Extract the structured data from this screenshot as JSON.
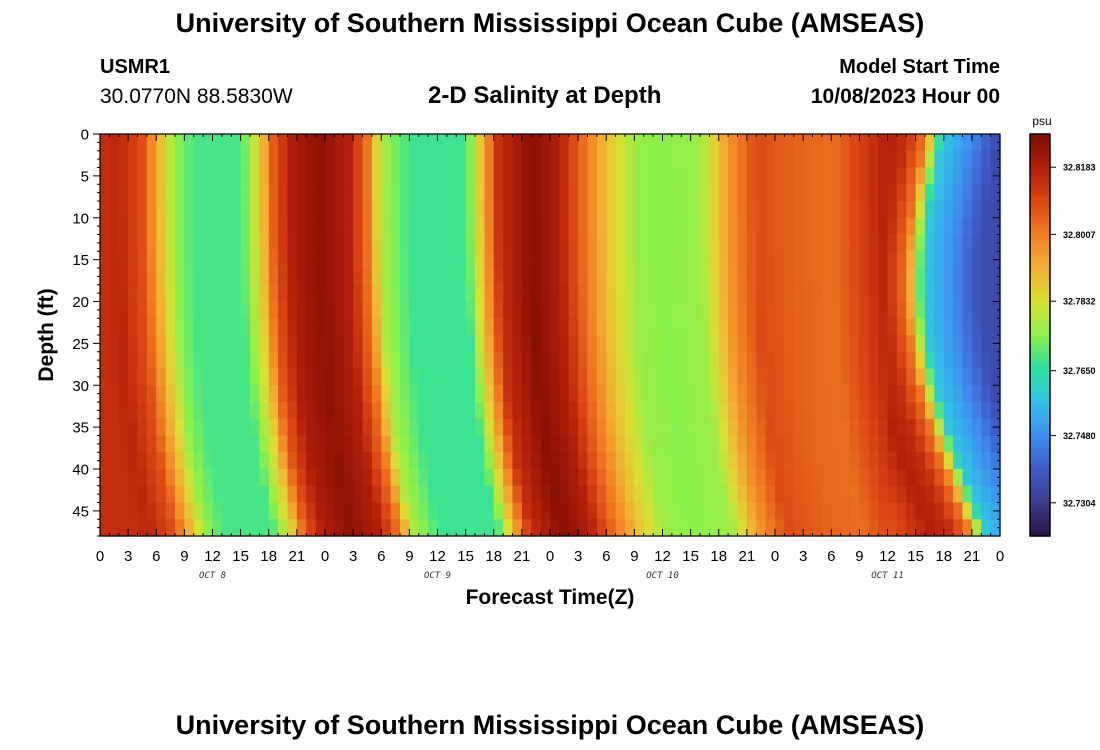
{
  "header": {
    "title": "University of Southern Mississippi Ocean Cube (AMSEAS)",
    "station": "USMR1",
    "coords": "30.0770N  88.5830W",
    "subtitle": "2-D Salinity at Depth",
    "model_start_label": "Model Start Time",
    "model_start_value": "10/08/2023 Hour 00"
  },
  "footer": {
    "title": "University of Southern Mississippi Ocean Cube (AMSEAS)"
  },
  "colors": {
    "background": "#ffffff",
    "axis": "#000000",
    "colormap": [
      "#2b1342",
      "#3b3d8f",
      "#3e5bc8",
      "#3f8cf0",
      "#31c2e6",
      "#2ee0a0",
      "#8cf04a",
      "#d9e032",
      "#f2b033",
      "#f07d22",
      "#db4714",
      "#b21e0a",
      "#7a0d02"
    ]
  },
  "chart_data": {
    "type": "heatmap",
    "title": "2-D Salinity at Depth",
    "xlabel": "Forecast Time(Z)",
    "ylabel": "Depth (ft)",
    "x_tick_labels": [
      "0",
      "3",
      "6",
      "9",
      "12",
      "15",
      "18",
      "21",
      "0",
      "3",
      "6",
      "9",
      "12",
      "15",
      "18",
      "21",
      "0",
      "3",
      "6",
      "9",
      "12",
      "15",
      "18",
      "21",
      "0",
      "3",
      "6",
      "9",
      "12",
      "15",
      "18",
      "21",
      "0"
    ],
    "x_range_hours": [
      0,
      96
    ],
    "date_labels": [
      {
        "label": "OCT 8",
        "center_hour": 12
      },
      {
        "label": "OCT 9",
        "center_hour": 36
      },
      {
        "label": "OCT 10",
        "center_hour": 60
      },
      {
        "label": "OCT 11",
        "center_hour": 84
      }
    ],
    "y_tick_labels": [
      "0",
      "5",
      "10",
      "15",
      "20",
      "25",
      "30",
      "35",
      "40",
      "45"
    ],
    "y_range_ft": [
      0,
      48
    ],
    "colorbar": {
      "unit": "psu",
      "vmin": 32.7217,
      "vmax": 32.827,
      "tick_values": [
        32.7304,
        32.748,
        32.765,
        32.7832,
        32.8007,
        32.8183
      ],
      "tick_labels": [
        "32.7304",
        "32.7480",
        "32.7650",
        "32.7832",
        "32.8007",
        "32.8183"
      ]
    },
    "salinity_key_points": [
      {
        "hour": 0,
        "psu": 32.8145
      },
      {
        "hour": 2,
        "psu": 32.8165
      },
      {
        "hour": 4.5,
        "psu": 32.808
      },
      {
        "hour": 6.5,
        "psu": 32.789
      },
      {
        "hour": 8,
        "psu": 32.775
      },
      {
        "hour": 10,
        "psu": 32.768
      },
      {
        "hour": 15,
        "psu": 32.768
      },
      {
        "hour": 17,
        "psu": 32.785
      },
      {
        "hour": 18.5,
        "psu": 32.806
      },
      {
        "hour": 20.5,
        "psu": 32.819
      },
      {
        "hour": 23.5,
        "psu": 32.824
      },
      {
        "hour": 26.5,
        "psu": 32.818
      },
      {
        "hour": 28.5,
        "psu": 32.802
      },
      {
        "hour": 30,
        "psu": 32.778
      },
      {
        "hour": 33,
        "psu": 32.767
      },
      {
        "hour": 39,
        "psu": 32.767
      },
      {
        "hour": 40.5,
        "psu": 32.787
      },
      {
        "hour": 42.5,
        "psu": 32.814
      },
      {
        "hour": 46,
        "psu": 32.825
      },
      {
        "hour": 49,
        "psu": 32.818
      },
      {
        "hour": 51,
        "psu": 32.806
      },
      {
        "hour": 54,
        "psu": 32.789
      },
      {
        "hour": 57,
        "psu": 32.776
      },
      {
        "hour": 60,
        "psu": 32.774
      },
      {
        "hour": 64,
        "psu": 32.776
      },
      {
        "hour": 67,
        "psu": 32.796
      },
      {
        "hour": 70,
        "psu": 32.809
      },
      {
        "hour": 74,
        "psu": 32.805
      },
      {
        "hour": 78,
        "psu": 32.803
      },
      {
        "hour": 82,
        "psu": 32.813
      },
      {
        "hour": 84,
        "psu": 32.818
      },
      {
        "hour": 86,
        "psu": 32.815
      },
      {
        "hour": 88,
        "psu": 32.802
      },
      {
        "hour": 90,
        "psu": 32.758
      },
      {
        "hour": 93,
        "psu": 32.748
      },
      {
        "hour": 96,
        "psu": 32.735
      }
    ]
  }
}
